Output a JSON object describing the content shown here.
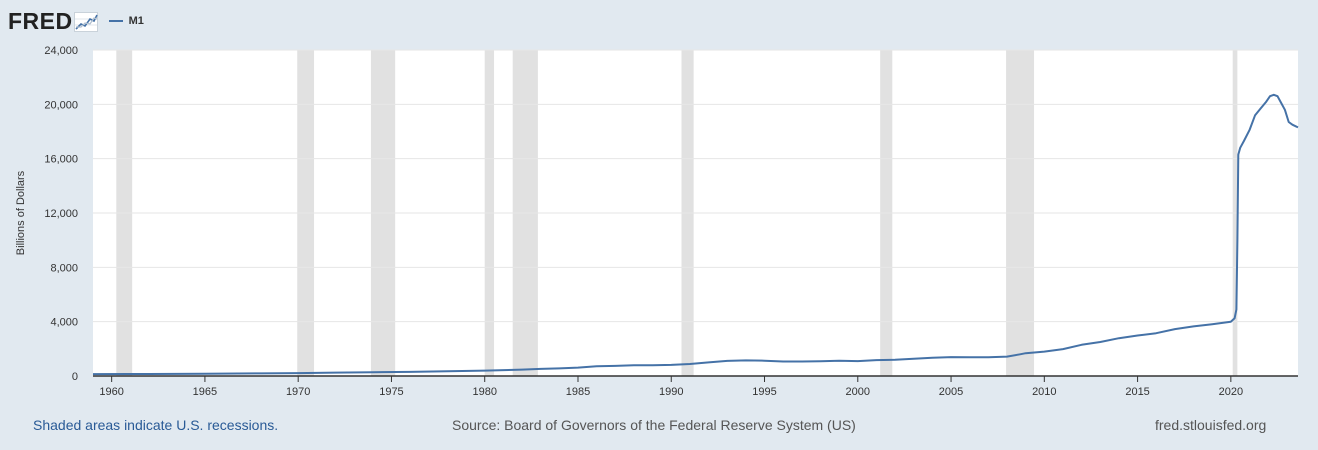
{
  "header": {
    "logo_text": "FRED",
    "logo_icon": "fred-line-chart-icon",
    "legend_label": "M1"
  },
  "colors": {
    "series": "#4572a7",
    "recession": "#e1e1e1",
    "background": "#e1e9f0",
    "plot_background": "#ffffff",
    "link": "#295a96"
  },
  "footer": {
    "recessions_note": "Shaded areas indicate U.S. recessions.",
    "source": "Source: Board of Governors of the Federal Reserve System (US)",
    "site": "fred.stlouisfed.org"
  },
  "chart_data": {
    "type": "line",
    "title": "",
    "xlabel": "",
    "ylabel": "Billions of Dollars",
    "xlim": [
      1959.0,
      2023.6
    ],
    "ylim": [
      0,
      24000
    ],
    "yticks": [
      0,
      4000,
      8000,
      12000,
      16000,
      20000,
      24000
    ],
    "ytick_labels": [
      "0",
      "4,000",
      "8,000",
      "12,000",
      "16,000",
      "20,000",
      "24,000"
    ],
    "xticks": [
      1960,
      1965,
      1970,
      1975,
      1980,
      1985,
      1990,
      1995,
      2000,
      2005,
      2010,
      2015,
      2020
    ],
    "xtick_labels": [
      "1960",
      "1965",
      "1970",
      "1975",
      "1980",
      "1985",
      "1990",
      "1995",
      "2000",
      "2005",
      "2010",
      "2015",
      "2020"
    ],
    "grid": true,
    "legend_position": "top-left",
    "recessions": [
      [
        1960.25,
        1961.1
      ],
      [
        1969.95,
        1970.85
      ],
      [
        1973.9,
        1975.2
      ],
      [
        1980.0,
        1980.5
      ],
      [
        1981.5,
        1982.85
      ],
      [
        1990.55,
        1991.2
      ],
      [
        2001.2,
        2001.85
      ],
      [
        2007.95,
        2009.45
      ],
      [
        2020.1,
        2020.35
      ]
    ],
    "series": [
      {
        "name": "M1",
        "x": [
          1959.0,
          1962.0,
          1965.0,
          1968.0,
          1970.0,
          1972.0,
          1974.0,
          1976.0,
          1978.0,
          1980.0,
          1982.0,
          1983.0,
          1984.0,
          1985.0,
          1986.0,
          1987.0,
          1988.0,
          1989.0,
          1990.0,
          1991.0,
          1992.0,
          1993.0,
          1994.0,
          1995.0,
          1996.0,
          1997.0,
          1998.0,
          1999.0,
          2000.0,
          2001.0,
          2002.0,
          2003.0,
          2004.0,
          2005.0,
          2006.0,
          2007.0,
          2008.0,
          2008.7,
          2009.0,
          2010.0,
          2011.0,
          2012.0,
          2013.0,
          2014.0,
          2015.0,
          2016.0,
          2017.0,
          2018.0,
          2019.0,
          2020.0,
          2020.2,
          2020.3,
          2020.35,
          2020.4,
          2020.5,
          2020.7,
          2021.0,
          2021.3,
          2021.6,
          2021.9,
          2022.1,
          2022.3,
          2022.5,
          2022.7,
          2022.9,
          2023.1,
          2023.3,
          2023.6
        ],
        "values": [
          140,
          145,
          168,
          190,
          215,
          250,
          280,
          305,
          355,
          400,
          470,
          520,
          560,
          620,
          720,
          740,
          790,
          790,
          820,
          880,
          1000,
          1110,
          1150,
          1130,
          1070,
          1070,
          1090,
          1120,
          1100,
          1170,
          1190,
          1270,
          1350,
          1390,
          1380,
          1380,
          1430,
          1600,
          1680,
          1800,
          1980,
          2300,
          2500,
          2780,
          2980,
          3150,
          3450,
          3650,
          3810,
          4000,
          4250,
          4900,
          10000,
          16300,
          16800,
          17300,
          18100,
          19200,
          19700,
          20200,
          20600,
          20700,
          20600,
          20100,
          19600,
          18700,
          18500,
          18300
        ]
      }
    ]
  }
}
